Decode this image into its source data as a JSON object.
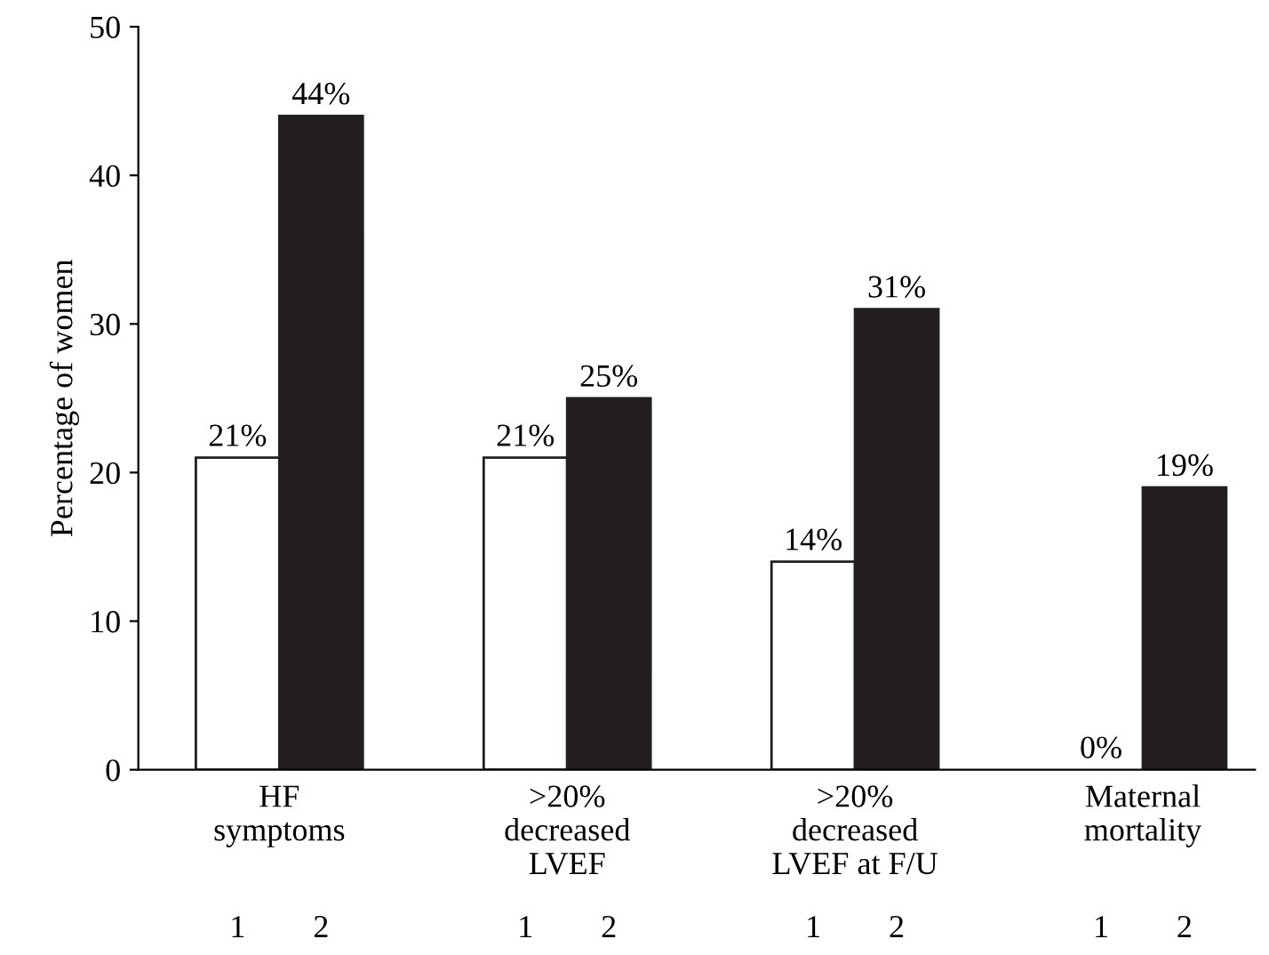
{
  "chart_data": {
    "type": "bar",
    "ylabel": "Percentage of women",
    "categories": [
      "HF\nsymptoms",
      ">20%\ndecreased\nLVEF",
      ">20%\ndecreased\nLVEF at F/U",
      "Maternal\nmortality"
    ],
    "series": [
      {
        "name": "1",
        "color": "#ffffff",
        "values": [
          21,
          21,
          14,
          0
        ],
        "value_labels": [
          "21%",
          "21%",
          "14%",
          "0%"
        ]
      },
      {
        "name": "2",
        "color": "#231f20",
        "values": [
          44,
          25,
          31,
          19
        ],
        "value_labels": [
          "44%",
          "25%",
          "31%",
          "19%"
        ]
      }
    ],
    "ylim": [
      0,
      50
    ],
    "yticks": [
      0,
      10,
      20,
      30,
      40,
      50
    ],
    "grid": false,
    "legend": false
  }
}
